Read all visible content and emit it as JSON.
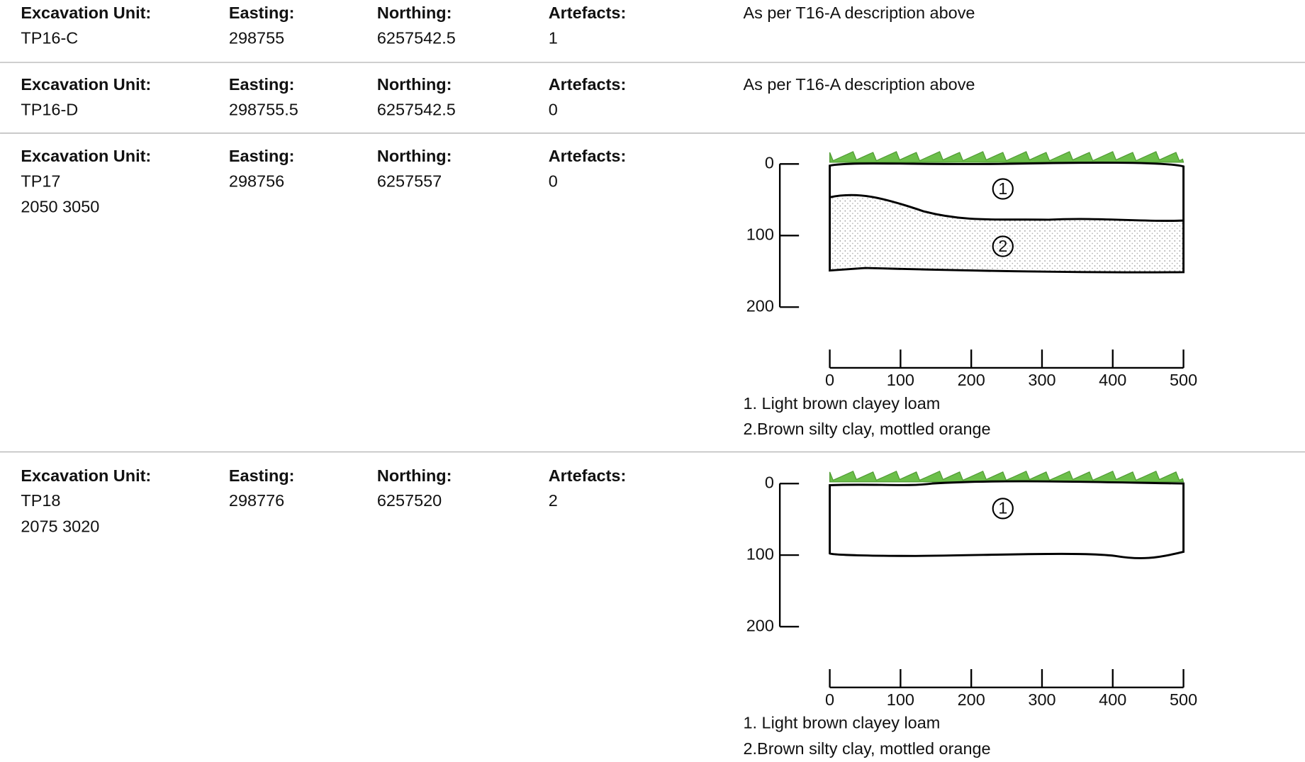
{
  "rows": [
    {
      "unit_label": "Excavation Unit:",
      "unit": "TP16-C",
      "easting_label": "Easting:",
      "easting": 298755,
      "northing_label": "Northing:",
      "northing": 6257542.5,
      "artefacts_label": "Artefacts:",
      "artefacts": 1,
      "description": "As per T16-A description above"
    },
    {
      "unit_label": "Excavation Unit:",
      "unit": "TP16-D",
      "easting_label": "Easting:",
      "easting": 298755.5,
      "northing_label": "Northing:",
      "northing": 6257542.5,
      "artefacts_label": "Artefacts:",
      "artefacts": 0,
      "description": "As per T16-A description above"
    },
    {
      "unit_label": "Excavation Unit:",
      "unit": "TP17",
      "grid": "2050 3050",
      "easting_label": "Easting:",
      "easting": 298756,
      "northing_label": "Northing:",
      "northing": 6257557,
      "artefacts_label": "Artefacts:",
      "artefacts": 0,
      "profile": {
        "depth_ticks": [
          0,
          100,
          200
        ],
        "distance_ticks": [
          0,
          100,
          200,
          300,
          400,
          500
        ],
        "layers": [
          "1",
          "2"
        ],
        "legend": [
          "1. Light brown clayey loam",
          "2.Brown silty clay, mottled orange"
        ]
      }
    },
    {
      "unit_label": "Excavation Unit:",
      "unit": "TP18",
      "grid": "2075 3020",
      "easting_label": "Easting:",
      "easting": 298776,
      "northing_label": "Northing:",
      "northing": 6257520,
      "artefacts_label": "Artefacts:",
      "artefacts": 2,
      "profile": {
        "depth_ticks": [
          0,
          100,
          200
        ],
        "distance_ticks": [
          0,
          100,
          200,
          300,
          400,
          500
        ],
        "layers": [
          "1"
        ],
        "legend": [
          "1. Light brown clayey loam",
          "2.Brown silty clay, mottled orange"
        ]
      }
    }
  ]
}
